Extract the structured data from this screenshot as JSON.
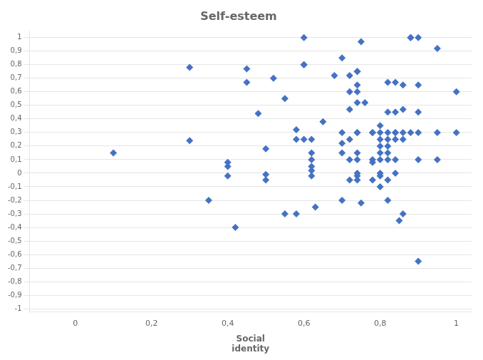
{
  "chart_data": {
    "type": "scatter",
    "title": "Self-esteem",
    "xlabel": "Social\nidentity",
    "color": "#4472C4",
    "marker": "diamond",
    "grid": "y",
    "x": [
      0.1,
      0.3,
      0.3,
      0.35,
      0.4,
      0.4,
      0.4,
      0.42,
      0.45,
      0.45,
      0.48,
      0.5,
      0.5,
      0.5,
      0.52,
      0.55,
      0.55,
      0.58,
      0.58,
      0.58,
      0.6,
      0.6,
      0.6,
      0.6,
      0.62,
      0.62,
      0.62,
      0.62,
      0.62,
      0.62,
      0.63,
      0.65,
      0.68,
      0.7,
      0.7,
      0.7,
      0.7,
      0.7,
      0.72,
      0.72,
      0.72,
      0.72,
      0.72,
      0.72,
      0.74,
      0.74,
      0.74,
      0.74,
      0.74,
      0.74,
      0.74,
      0.74,
      0.74,
      0.74,
      0.74,
      0.74,
      0.75,
      0.75,
      0.76,
      0.78,
      0.78,
      0.78,
      0.78,
      0.78,
      0.8,
      0.8,
      0.8,
      0.8,
      0.8,
      0.8,
      0.8,
      0.8,
      0.8,
      0.82,
      0.82,
      0.82,
      0.82,
      0.82,
      0.82,
      0.82,
      0.82,
      0.82,
      0.84,
      0.84,
      0.84,
      0.84,
      0.84,
      0.84,
      0.84,
      0.85,
      0.86,
      0.86,
      0.86,
      0.86,
      0.86,
      0.88,
      0.88,
      0.88,
      0.9,
      0.9,
      0.9,
      0.9,
      0.9,
      0.9,
      0.95,
      0.95,
      0.95,
      1.0,
      1.0
    ],
    "values": [
      0.15,
      0.78,
      0.24,
      -0.2,
      -0.02,
      0.05,
      0.08,
      -0.4,
      0.67,
      0.77,
      0.44,
      0.18,
      -0.01,
      -0.05,
      0.7,
      0.55,
      -0.3,
      0.32,
      -0.3,
      0.25,
      1.0,
      0.8,
      0.8,
      0.25,
      0.25,
      0.15,
      0.1,
      0.05,
      0.02,
      -0.02,
      -0.25,
      0.38,
      0.72,
      0.85,
      0.3,
      0.22,
      0.15,
      -0.2,
      0.47,
      0.72,
      0.6,
      0.25,
      0.1,
      -0.05,
      0.75,
      0.75,
      0.65,
      0.6,
      0.52,
      0.3,
      0.3,
      0.15,
      0.1,
      0.0,
      -0.02,
      -0.05,
      0.97,
      -0.22,
      0.52,
      0.3,
      0.3,
      0.1,
      0.08,
      -0.05,
      0.35,
      0.3,
      0.25,
      0.2,
      0.15,
      0.1,
      0.0,
      -0.02,
      -0.1,
      0.67,
      0.45,
      0.3,
      0.25,
      0.2,
      0.15,
      0.1,
      -0.05,
      -0.2,
      0.67,
      0.45,
      0.3,
      0.3,
      0.25,
      0.1,
      0.0,
      -0.35,
      0.65,
      0.47,
      0.3,
      0.25,
      -0.3,
      1.0,
      1.0,
      0.3,
      1.0,
      0.65,
      0.45,
      0.3,
      0.1,
      -0.65,
      0.92,
      0.3,
      0.1,
      0.6,
      0.3
    ],
    "xlim": [
      -0.12,
      1.04
    ],
    "ylim": [
      -1.02,
      1.05
    ],
    "xticks": [
      0,
      {
        "value": 0.2,
        "label": "0,2"
      },
      {
        "value": 0.4,
        "label": "0,4"
      },
      {
        "value": 0.6,
        "label": "0,6"
      },
      {
        "value": 0.8,
        "label": "0,8"
      },
      1
    ],
    "yticks": [
      -1,
      {
        "value": -0.9,
        "label": "-0,9"
      },
      {
        "value": -0.8,
        "label": "-0,8"
      },
      {
        "value": -0.7,
        "label": "-0,7"
      },
      {
        "value": -0.6,
        "label": "-0,6"
      },
      {
        "value": -0.5,
        "label": "-0,5"
      },
      {
        "value": -0.4,
        "label": "-0,4"
      },
      {
        "value": -0.3,
        "label": "-0,3"
      },
      {
        "value": -0.2,
        "label": "-0,2"
      },
      {
        "value": -0.1,
        "label": "-0,1"
      },
      0,
      {
        "value": 0.1,
        "label": "0,1"
      },
      {
        "value": 0.2,
        "label": "0,2"
      },
      {
        "value": 0.3,
        "label": "0,3"
      },
      {
        "value": 0.4,
        "label": "0,4"
      },
      {
        "value": 0.5,
        "label": "0,5"
      },
      {
        "value": 0.6,
        "label": "0,6"
      },
      {
        "value": 0.7,
        "label": "0,7"
      },
      {
        "value": 0.8,
        "label": "0,8"
      },
      {
        "value": 0.9,
        "label": "0,9"
      },
      1
    ]
  }
}
